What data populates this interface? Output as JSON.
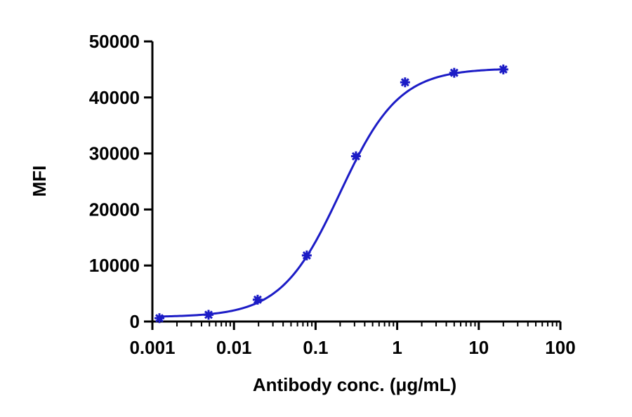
{
  "chart_data": {
    "type": "scatter",
    "title": "",
    "xlabel": "Antibody conc. (μg/mL)",
    "ylabel": "MFI",
    "x_scale": "log",
    "xlim": [
      0.001,
      100
    ],
    "ylim": [
      0,
      50000
    ],
    "x_ticks": [
      "0.001",
      "0.01",
      "0.1",
      "1",
      "10",
      "100"
    ],
    "y_ticks": [
      "0",
      "10000",
      "20000",
      "30000",
      "40000",
      "50000"
    ],
    "grid": false,
    "legend": "none",
    "series": [
      {
        "color": "#1c1cc6",
        "marker": "asterisk",
        "x": [
          0.00122,
          0.00488,
          0.0195,
          0.078,
          0.3125,
          1.25,
          5,
          20
        ],
        "y": [
          600,
          1200,
          3900,
          11800,
          29500,
          42700,
          44400,
          45000
        ]
      }
    ],
    "fit_curve": {
      "type": "4PL",
      "color": "#1c1cc6",
      "bottom": 800,
      "top": 45200,
      "ec50": 0.2,
      "hill": 1.2
    }
  }
}
